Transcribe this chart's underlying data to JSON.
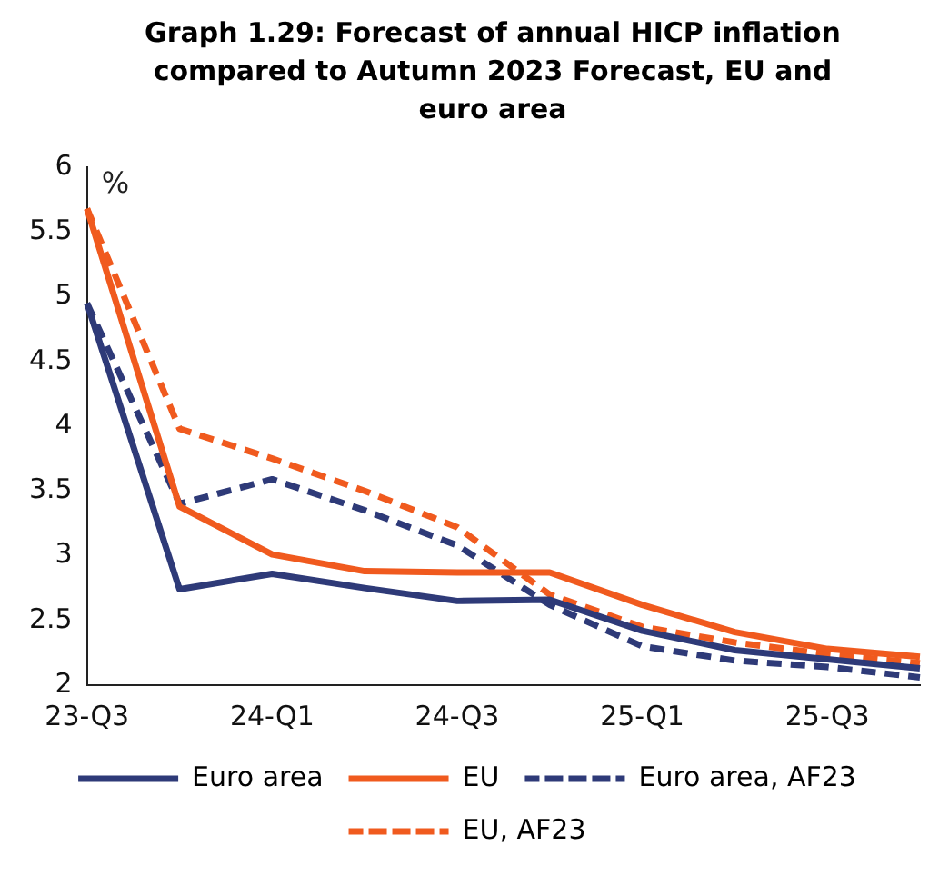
{
  "chart_data": {
    "type": "line",
    "title": "Graph 1.29: Forecast of annual HICP inflation compared to Autumn 2023 Forecast, EU and euro area",
    "ylabel": "%",
    "categories": [
      "23-Q3",
      null,
      "24-Q1",
      null,
      "24-Q3",
      null,
      "25-Q1",
      null,
      "25-Q3",
      null
    ],
    "series": [
      {
        "name": "Euro area",
        "color": "#2e3a78",
        "line_style": "solid",
        "values": [
          4.95,
          2.74,
          2.86,
          2.75,
          2.65,
          2.66,
          2.42,
          2.27,
          2.2,
          2.13
        ]
      },
      {
        "name": "EU",
        "color": "#f05a1e",
        "line_style": "solid",
        "values": [
          5.68,
          3.38,
          3.01,
          2.88,
          2.87,
          2.87,
          2.62,
          2.41,
          2.28,
          2.22
        ]
      },
      {
        "name": "Euro area, AF23",
        "color": "#2e3a78",
        "line_style": "dashed",
        "values": [
          4.95,
          3.4,
          3.59,
          3.35,
          3.08,
          2.62,
          2.3,
          2.19,
          2.14,
          2.06
        ]
      },
      {
        "name": "EU, AF23",
        "color": "#f05a1e",
        "line_style": "dashed",
        "values": [
          5.68,
          3.98,
          3.75,
          3.5,
          3.22,
          2.7,
          2.45,
          2.33,
          2.24,
          2.17
        ]
      }
    ],
    "ylim": [
      2,
      6
    ],
    "yticks": [
      2,
      2.5,
      3,
      3.5,
      4,
      4.5,
      5,
      5.5,
      6
    ],
    "grid": false,
    "legend": "bottom",
    "marker": "none"
  }
}
